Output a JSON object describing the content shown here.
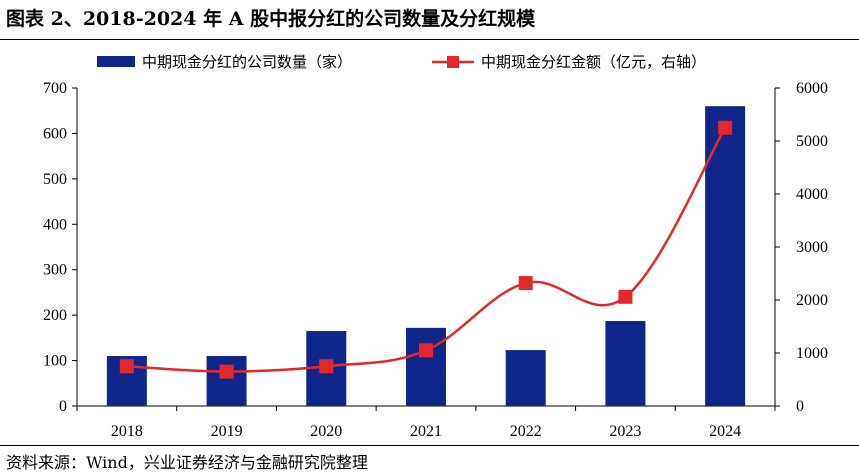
{
  "title": "图表 2、2018-2024 年 A 股中报分红的公司数量及分红规模",
  "source": "资料来源：Wind，兴业证券经济与金融研究院整理",
  "chart_data": {
    "type": "bar+line",
    "categories": [
      "2018",
      "2019",
      "2020",
      "2021",
      "2022",
      "2023",
      "2024"
    ],
    "series": [
      {
        "name": "中期现金分红的公司数量（家）",
        "type": "bar",
        "axis": "left",
        "values": [
          110,
          110,
          165,
          172,
          123,
          187,
          660
        ],
        "color": "#10268a"
      },
      {
        "name": "中期现金分红金额（亿元，右轴）",
        "type": "line",
        "axis": "right",
        "values": [
          750,
          650,
          750,
          1050,
          2320,
          2060,
          5250
        ],
        "color": "#e3282c"
      }
    ],
    "y_left": {
      "min": 0,
      "max": 700,
      "ticks": [
        "0",
        "100",
        "200",
        "300",
        "400",
        "500",
        "600",
        "700"
      ]
    },
    "y_right": {
      "min": 0,
      "max": 6000,
      "ticks": [
        "0",
        "1000",
        "2000",
        "3000",
        "4000",
        "5000",
        "6000"
      ]
    },
    "grid": false,
    "legend": "top"
  }
}
